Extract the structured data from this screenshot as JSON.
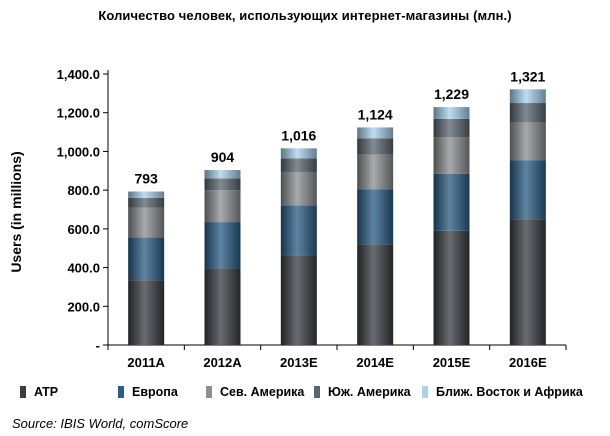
{
  "chart_data": {
    "type": "bar",
    "stacked": true,
    "title": "Количество человек, использующих интернет-магазины (млн.)",
    "ylabel": "Users (in millions)",
    "xlabel": "",
    "categories": [
      "2011A",
      "2012A",
      "2013E",
      "2014E",
      "2015E",
      "2016E"
    ],
    "totals": [
      "793",
      "904",
      "1,016",
      "1,124",
      "1,229",
      "1,321"
    ],
    "series": [
      {
        "name": "ATP",
        "color": "#3a3e43",
        "values": [
          335,
          395,
          460,
          520,
          590,
          650
        ]
      },
      {
        "name": "Европа",
        "color": "#2b5d86",
        "values": [
          220,
          240,
          262,
          285,
          295,
          305
        ]
      },
      {
        "name": "Сев. Америка",
        "color": "#8d8f92",
        "values": [
          155,
          165,
          172,
          178,
          188,
          195
        ]
      },
      {
        "name": "Юж. Америка",
        "color": "#5b6770",
        "values": [
          50,
          60,
          70,
          85,
          95,
          100
        ]
      },
      {
        "name": "Ближ. Восток и Африка",
        "color": "#a9d2ee",
        "values": [
          33,
          44,
          52,
          56,
          61,
          71
        ]
      }
    ],
    "ylim": [
      0,
      1400
    ],
    "yticks": [
      "-",
      "200.0",
      "400.0",
      "600.0",
      "800.0",
      "1,000.0",
      "1,200.0",
      "1,400.0"
    ],
    "grid": false,
    "legend_position": "bottom"
  },
  "source": "Source: IBIS World, comScore"
}
